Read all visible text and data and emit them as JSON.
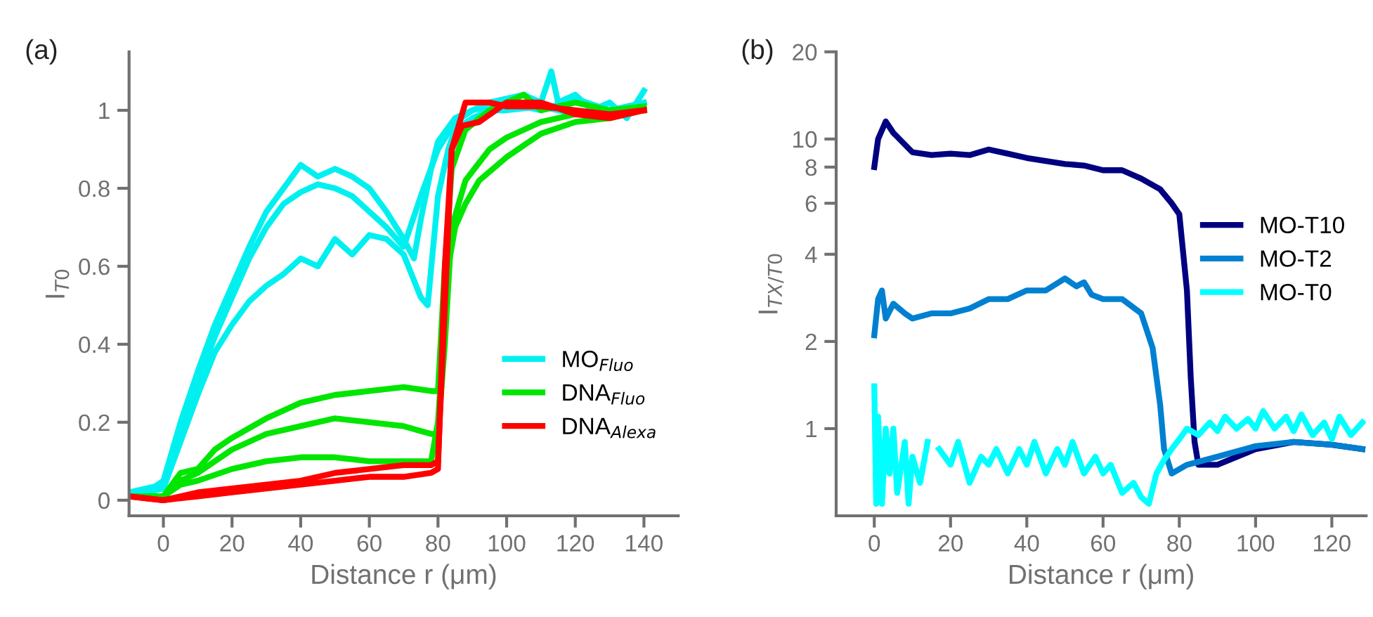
{
  "chart_data": [
    {
      "type": "line",
      "title": "(a)",
      "xlabel": "Distance r (μm)",
      "ylabel": "I$_{T0}$",
      "xlim": [
        -10,
        150
      ],
      "xticks": [
        0,
        20,
        40,
        60,
        80,
        100,
        120,
        140
      ],
      "ylim": [
        -0.04,
        1.15
      ],
      "yticks": [
        0,
        0.2,
        0.4,
        0.6,
        0.8,
        1
      ],
      "grid": false,
      "legend": "bottom right",
      "marker": "none",
      "line_style": "solid",
      "series": [
        {
          "name": "MO$_{Fluo}$",
          "color": "#00f0f0",
          "x": [
            -10,
            -5,
            0,
            5,
            10,
            15,
            20,
            25,
            30,
            35,
            40,
            45,
            50,
            55,
            60,
            65,
            70,
            73,
            75,
            78,
            80,
            85,
            90,
            95,
            100,
            105,
            110,
            113,
            115,
            120,
            125,
            130,
            135,
            140
          ],
          "values": [
            0.02,
            0.02,
            0.05,
            0.2,
            0.33,
            0.45,
            0.55,
            0.65,
            0.74,
            0.8,
            0.86,
            0.83,
            0.85,
            0.83,
            0.8,
            0.74,
            0.67,
            0.62,
            0.72,
            0.85,
            0.92,
            0.98,
            1.0,
            1.02,
            1.03,
            1.04,
            1.02,
            1.1,
            1.02,
            1.04,
            1.0,
            1.02,
            0.98,
            1.05
          ]
        },
        {
          "color": "#00f0f0",
          "x": [
            -10,
            0,
            5,
            10,
            15,
            20,
            25,
            30,
            35,
            40,
            45,
            50,
            55,
            60,
            65,
            70,
            75,
            80,
            85,
            90,
            100,
            110,
            120,
            130,
            140
          ],
          "values": [
            0.02,
            0.04,
            0.17,
            0.3,
            0.42,
            0.52,
            0.62,
            0.7,
            0.76,
            0.79,
            0.81,
            0.8,
            0.78,
            0.74,
            0.7,
            0.65,
            0.78,
            0.9,
            0.97,
            1.0,
            1.02,
            1.0,
            1.03,
            1.0,
            1.02
          ]
        },
        {
          "color": "#00f0f0",
          "x": [
            -10,
            0,
            5,
            10,
            15,
            20,
            25,
            30,
            35,
            40,
            45,
            50,
            55,
            60,
            65,
            70,
            75,
            77,
            80,
            83,
            85,
            90,
            95,
            100,
            110,
            120,
            130,
            140
          ],
          "values": [
            0.01,
            0.03,
            0.15,
            0.27,
            0.38,
            0.45,
            0.51,
            0.55,
            0.58,
            0.62,
            0.6,
            0.67,
            0.63,
            0.68,
            0.67,
            0.63,
            0.52,
            0.5,
            0.78,
            0.9,
            0.95,
            0.98,
            1.0,
            1.0,
            1.01,
            0.99,
            1.0,
            1.0
          ]
        },
        {
          "name": "DNA$_{Fluo}$",
          "color": "#00e600",
          "x": [
            -10,
            0,
            5,
            10,
            15,
            20,
            30,
            40,
            50,
            60,
            70,
            78,
            80,
            82,
            84,
            88,
            95,
            100,
            105,
            110,
            120,
            130,
            140
          ],
          "values": [
            0.01,
            0.01,
            0.07,
            0.08,
            0.13,
            0.16,
            0.21,
            0.25,
            0.27,
            0.28,
            0.29,
            0.28,
            0.28,
            0.6,
            0.85,
            0.95,
            1.0,
            1.02,
            1.04,
            1.0,
            1.02,
            1.0,
            1.01
          ]
        },
        {
          "color": "#00e600",
          "x": [
            -10,
            0,
            5,
            10,
            20,
            30,
            40,
            50,
            60,
            70,
            78,
            80,
            82,
            84,
            88,
            95,
            100,
            110,
            120,
            130,
            140
          ],
          "values": [
            0.01,
            0.01,
            0.05,
            0.07,
            0.13,
            0.17,
            0.19,
            0.21,
            0.2,
            0.19,
            0.17,
            0.17,
            0.4,
            0.7,
            0.82,
            0.9,
            0.93,
            0.97,
            0.99,
            1.0,
            1.0
          ]
        },
        {
          "color": "#00e600",
          "x": [
            -10,
            0,
            5,
            10,
            20,
            30,
            40,
            50,
            60,
            70,
            78,
            80,
            83,
            85,
            88,
            92,
            100,
            110,
            120,
            130,
            140
          ],
          "values": [
            0.01,
            0.01,
            0.04,
            0.05,
            0.08,
            0.1,
            0.11,
            0.11,
            0.1,
            0.1,
            0.1,
            0.2,
            0.6,
            0.7,
            0.76,
            0.82,
            0.88,
            0.94,
            0.97,
            0.98,
            1.0
          ]
        },
        {
          "name": "DNA$_{Alexa}$",
          "color": "#ff0000",
          "x": [
            -10,
            0,
            10,
            20,
            30,
            40,
            50,
            60,
            70,
            78,
            80,
            82,
            84,
            88,
            95,
            100,
            110,
            120,
            130,
            140
          ],
          "values": [
            0.01,
            0.0,
            0.02,
            0.03,
            0.04,
            0.05,
            0.07,
            0.08,
            0.09,
            0.09,
            0.1,
            0.5,
            0.9,
            1.02,
            1.02,
            1.01,
            1.01,
            1.0,
            0.99,
            1.0
          ]
        },
        {
          "color": "#ff0000",
          "x": [
            -10,
            0,
            10,
            20,
            30,
            40,
            50,
            60,
            70,
            78,
            80,
            82,
            84,
            87,
            92,
            100,
            110,
            120,
            130,
            140
          ],
          "values": [
            0.01,
            0.0,
            0.01,
            0.02,
            0.03,
            0.04,
            0.05,
            0.06,
            0.06,
            0.07,
            0.08,
            0.6,
            0.9,
            0.96,
            0.97,
            1.02,
            1.02,
            0.99,
            0.98,
            1.0
          ]
        }
      ]
    },
    {
      "type": "line",
      "title": "(b)",
      "xlabel": "Distance r (μm)",
      "ylabel": "I$_{TX/T0}$",
      "log": "y",
      "xlim": [
        -10,
        129
      ],
      "xticks": [
        0,
        20,
        40,
        60,
        80,
        100,
        120
      ],
      "ylim": [
        0.5,
        20
      ],
      "yticks": [
        1,
        2,
        4,
        6,
        8,
        10,
        20
      ],
      "grid": false,
      "legend": "right",
      "marker": "none",
      "line_style": "solid",
      "series": [
        {
          "name": "MO-T10",
          "color": "#000080",
          "x": [
            0,
            1,
            3,
            5,
            10,
            15,
            20,
            25,
            30,
            35,
            40,
            50,
            55,
            60,
            65,
            70,
            75,
            78,
            80,
            82,
            83,
            84,
            85,
            90,
            100,
            110,
            120,
            128
          ],
          "values": [
            8,
            10,
            11.5,
            10.5,
            9.0,
            8.8,
            8.9,
            8.8,
            9.2,
            8.9,
            8.6,
            8.2,
            8.1,
            7.8,
            7.8,
            7.3,
            6.7,
            6.0,
            5.5,
            3,
            1.5,
            0.9,
            0.75,
            0.75,
            0.85,
            0.9,
            0.88,
            0.85
          ]
        },
        {
          "name": "MO-T2",
          "color": "#0080d0",
          "x": [
            0,
            1,
            2,
            3,
            5,
            8,
            10,
            15,
            20,
            25,
            30,
            35,
            40,
            45,
            50,
            53,
            55,
            57,
            60,
            65,
            70,
            73,
            75,
            76,
            78,
            82,
            90,
            100,
            110,
            120,
            128
          ],
          "values": [
            2.1,
            2.8,
            3.0,
            2.4,
            2.7,
            2.5,
            2.4,
            2.5,
            2.5,
            2.6,
            2.8,
            2.8,
            3.0,
            3.0,
            3.3,
            3.1,
            3.2,
            2.9,
            2.8,
            2.8,
            2.5,
            1.9,
            1.2,
            0.85,
            0.7,
            0.75,
            0.8,
            0.87,
            0.9,
            0.88,
            0.85
          ]
        },
        {
          "name": "MO-T0",
          "color": "#00ffff",
          "x": [
            0,
            0.5,
            1,
            2,
            3,
            4,
            5,
            6,
            8,
            9,
            10,
            12,
            14,
            16,
            17,
            20,
            22,
            25,
            28,
            30,
            32,
            35,
            38,
            40,
            42,
            45,
            48,
            50,
            52,
            55,
            58,
            60,
            62,
            65,
            68,
            70,
            72,
            74,
            76,
            78,
            80,
            82,
            85,
            88,
            90,
            92,
            95,
            98,
            100,
            102,
            105,
            108,
            110,
            112,
            115,
            118,
            120,
            122,
            125,
            128
          ],
          "values": [
            1.4,
            0.55,
            1.1,
            0.55,
            1.0,
            0.7,
            1.0,
            0.6,
            0.9,
            0.55,
            0.8,
            0.65,
            0.9,
            null,
            0.85,
            0.75,
            0.9,
            0.65,
            0.8,
            0.75,
            0.85,
            0.7,
            0.85,
            0.75,
            0.9,
            0.7,
            0.85,
            0.75,
            0.9,
            0.7,
            0.8,
            0.7,
            0.75,
            0.6,
            0.65,
            0.58,
            0.55,
            0.7,
            0.78,
            0.85,
            0.92,
            1.0,
            0.95,
            1.05,
            0.98,
            1.1,
            1.0,
            1.08,
            1.0,
            1.15,
            1.0,
            1.1,
            0.98,
            1.12,
            0.95,
            1.05,
            0.92,
            1.1,
            0.95,
            1.05
          ]
        }
      ]
    }
  ]
}
